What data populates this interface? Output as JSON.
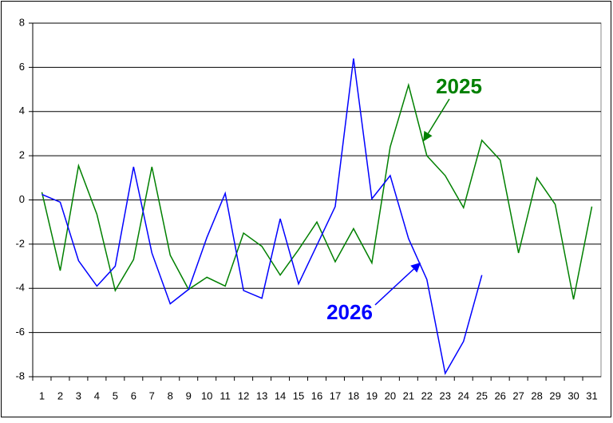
{
  "chart_data": {
    "type": "line",
    "categories": [
      "1",
      "2",
      "3",
      "4",
      "5",
      "6",
      "7",
      "8",
      "9",
      "10",
      "11",
      "12",
      "13",
      "14",
      "15",
      "16",
      "17",
      "18",
      "19",
      "20",
      "21",
      "22",
      "23",
      "24",
      "25",
      "26",
      "27",
      "28",
      "29",
      "30",
      "31"
    ],
    "series": [
      {
        "name": "2025",
        "color": "#008000",
        "values": [
          0.35,
          -3.2,
          1.55,
          -0.65,
          -4.1,
          -2.7,
          1.5,
          -2.5,
          -4.05,
          -3.5,
          -3.9,
          -1.5,
          -2.1,
          -3.4,
          -2.25,
          -1.0,
          -2.8,
          -1.3,
          -2.85,
          2.4,
          5.2,
          2.0,
          1.1,
          -0.35,
          2.7,
          1.8,
          -2.4,
          1.0,
          -0.2,
          -4.5,
          -0.3
        ]
      },
      {
        "name": "2026",
        "color": "#0000ff",
        "values": [
          0.25,
          -0.1,
          -2.75,
          -3.9,
          -3.0,
          1.5,
          -2.4,
          -4.7,
          -4.05,
          -1.7,
          0.3,
          -4.1,
          -4.45,
          -0.85,
          -3.8,
          -2.05,
          -0.3,
          6.4,
          0.05,
          1.1,
          -1.75,
          -3.6,
          -7.85,
          -6.4,
          -3.4,
          null,
          null,
          null,
          null,
          null,
          null
        ]
      }
    ],
    "ylim": [
      -8,
      8
    ],
    "yticks": [
      -8,
      -6,
      -4,
      -2,
      0,
      2,
      4,
      6,
      8
    ],
    "grid": true
  }
}
